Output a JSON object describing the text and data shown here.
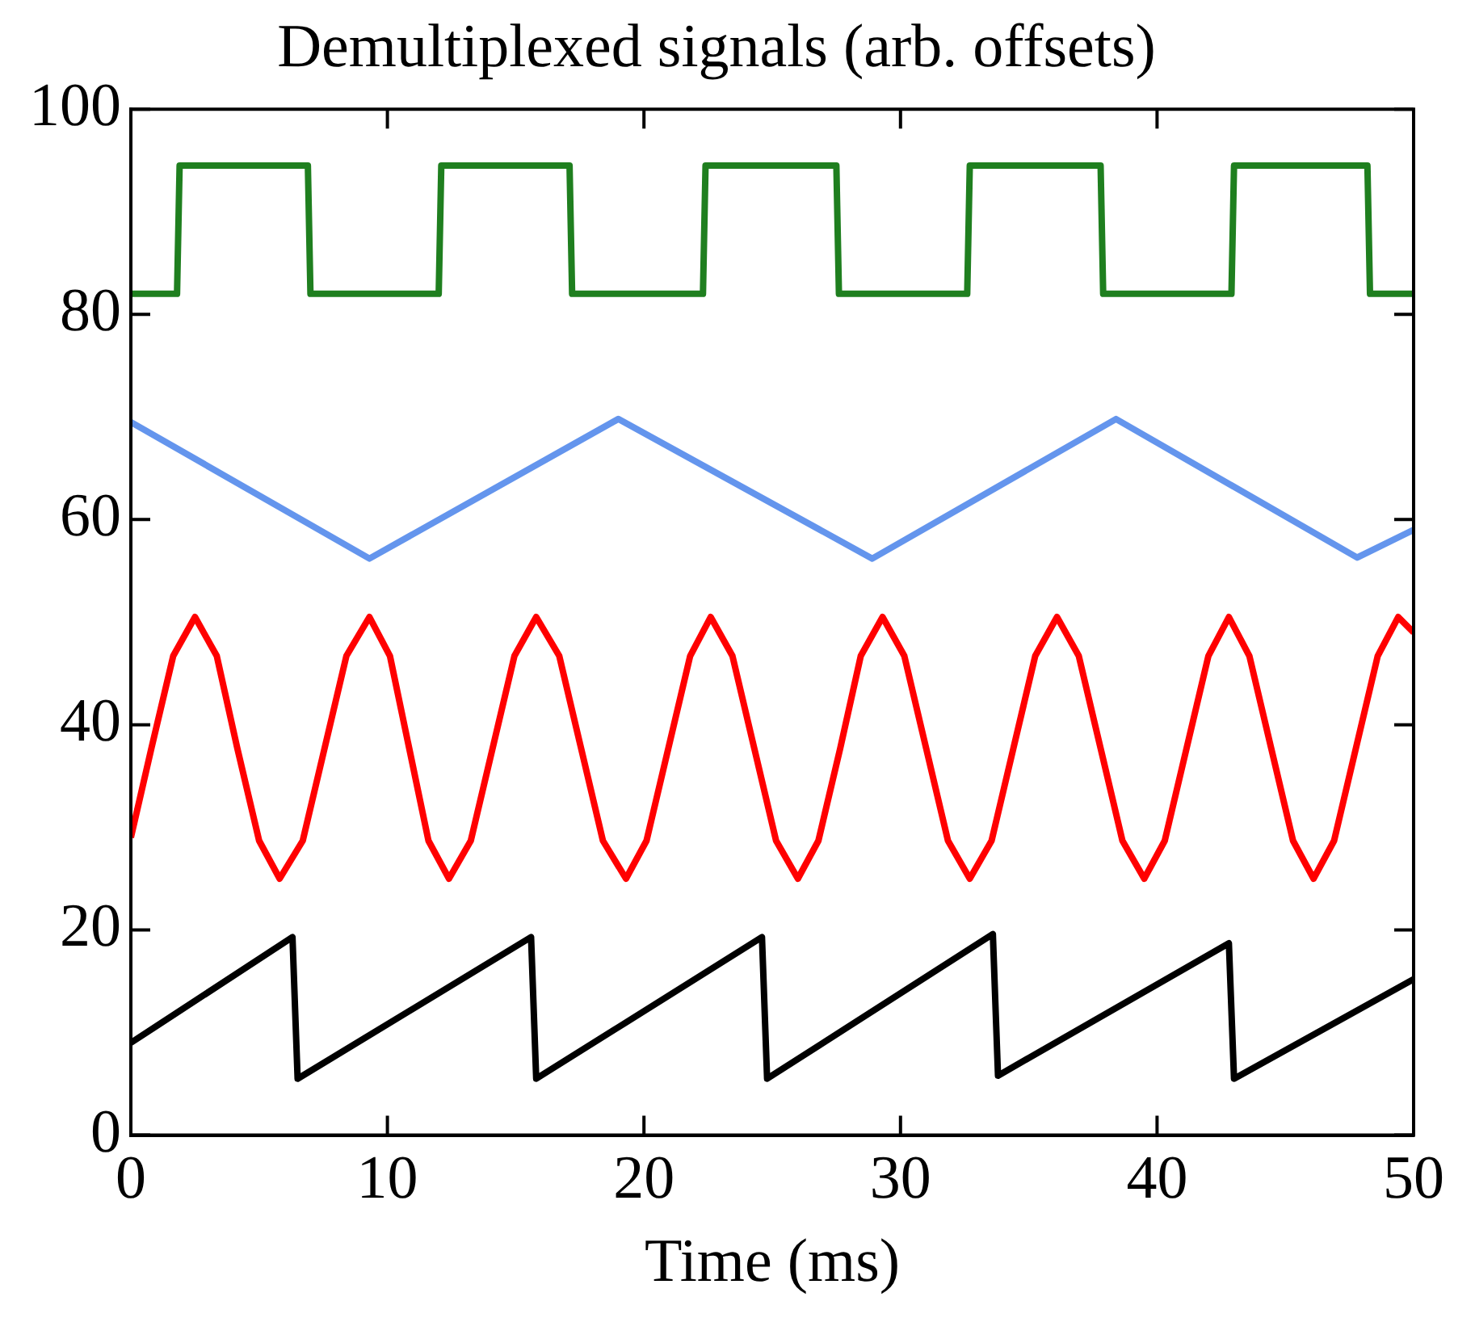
{
  "chart_data": {
    "type": "line",
    "title": "Demultiplexed signals (arb. offsets)",
    "xlabel": "Time (ms)",
    "xlim": [
      0,
      50
    ],
    "ylim": [
      0,
      100
    ],
    "xticks": [
      0,
      10,
      20,
      30,
      40,
      50
    ],
    "yticks": [
      0,
      20,
      40,
      60,
      80,
      100
    ],
    "grid": false,
    "series": [
      {
        "color": "#1f7f1f",
        "x": [
          0,
          1.8,
          1.9,
          6.9,
          7.0,
          12.0,
          12.1,
          17.1,
          17.2,
          22.3,
          22.4,
          27.5,
          27.6,
          32.6,
          32.7,
          37.8,
          37.9,
          42.9,
          43.0,
          48.2,
          48.3,
          50
        ],
        "values": [
          82,
          82,
          94.5,
          94.5,
          82,
          82,
          94.5,
          94.5,
          82,
          82,
          94.5,
          94.5,
          82,
          82,
          94.5,
          94.5,
          82,
          82,
          94.5,
          94.5,
          82,
          82
        ]
      },
      {
        "color": "#6495ed",
        "x": [
          0,
          9.3,
          19.0,
          28.9,
          38.4,
          47.8,
          50
        ],
        "values": [
          69.5,
          56.2,
          69.8,
          56.2,
          69.8,
          56.3,
          59
        ]
      },
      {
        "color": "#ff0000",
        "x": [
          0,
          0.8,
          1.65,
          2.5,
          3.35,
          4.15,
          5.0,
          5.8,
          6.7,
          7.55,
          8.4,
          9.3,
          10.1,
          10.85,
          11.6,
          12.4,
          13.25,
          14.1,
          14.95,
          15.8,
          16.7,
          17.55,
          18.4,
          19.3,
          20.1,
          20.95,
          21.8,
          22.6,
          23.45,
          24.3,
          25.15,
          26.0,
          26.8,
          27.65,
          28.45,
          29.3,
          30.15,
          31.0,
          31.85,
          32.7,
          33.55,
          34.4,
          35.25,
          36.1,
          36.95,
          37.8,
          38.65,
          39.5,
          40.3,
          41.15,
          42.0,
          42.8,
          43.6,
          44.45,
          45.3,
          46.1,
          46.9,
          47.75,
          48.6,
          49.4,
          50
        ],
        "values": [
          29,
          37.7,
          46.7,
          50.5,
          46.7,
          37.7,
          28.7,
          25,
          28.7,
          37.7,
          46.7,
          50.5,
          46.7,
          37.7,
          28.7,
          25,
          28.7,
          37.7,
          46.7,
          50.5,
          46.7,
          37.7,
          28.7,
          25,
          28.7,
          37.7,
          46.7,
          50.5,
          46.7,
          37.7,
          28.7,
          25,
          28.7,
          37.7,
          46.7,
          50.5,
          46.7,
          37.7,
          28.7,
          25,
          28.7,
          37.7,
          46.7,
          50.5,
          46.7,
          37.7,
          28.7,
          25,
          28.7,
          37.7,
          46.7,
          50.5,
          46.7,
          37.7,
          28.7,
          25,
          28.7,
          37.7,
          46.7,
          50.5,
          49
        ]
      },
      {
        "color": "#000000",
        "x": [
          0,
          6.3,
          6.5,
          15.6,
          15.8,
          24.6,
          24.8,
          33.6,
          33.8,
          42.8,
          43.0,
          50
        ],
        "values": [
          9,
          19.3,
          5.5,
          19.3,
          5.5,
          19.3,
          5.5,
          19.6,
          5.8,
          18.7,
          5.5,
          15.2
        ]
      }
    ]
  }
}
